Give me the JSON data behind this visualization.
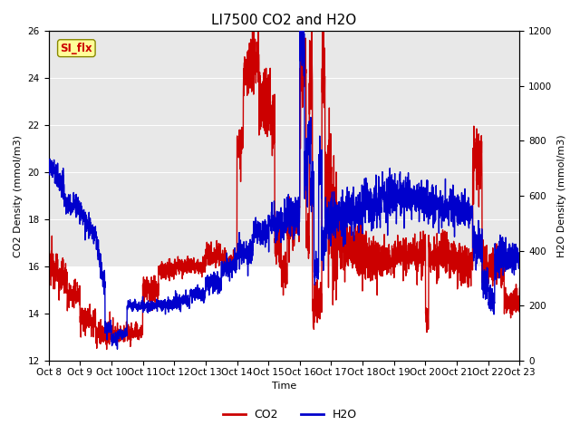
{
  "title": "LI7500 CO2 and H2O",
  "xlabel": "Time",
  "ylabel_left": "CO2 Density (mmol/m3)",
  "ylabel_right": "H2O Density (mmol/m3)",
  "ylim_left": [
    12,
    26
  ],
  "ylim_right": [
    0,
    1200
  ],
  "yticks_left": [
    12,
    14,
    16,
    18,
    20,
    22,
    24,
    26
  ],
  "yticks_right": [
    0,
    200,
    400,
    600,
    800,
    1000,
    1200
  ],
  "xtick_labels": [
    "Oct 8",
    "Oct 9",
    "Oct 10",
    "Oct 11",
    "Oct 12",
    "Oct 13",
    "Oct 14",
    "Oct 15",
    "Oct 16",
    "Oct 17",
    "Oct 18",
    "Oct 19",
    "Oct 20",
    "Oct 21",
    "Oct 22",
    "Oct 23"
  ],
  "co2_color": "#cc0000",
  "h2o_color": "#0000cc",
  "legend_co2": "CO2",
  "legend_h2o": "H2O",
  "annotation_text": "SI_flx",
  "band_color": "#e8e8e8",
  "line_width": 1.0,
  "title_fontsize": 11,
  "label_fontsize": 8,
  "tick_fontsize": 7.5
}
